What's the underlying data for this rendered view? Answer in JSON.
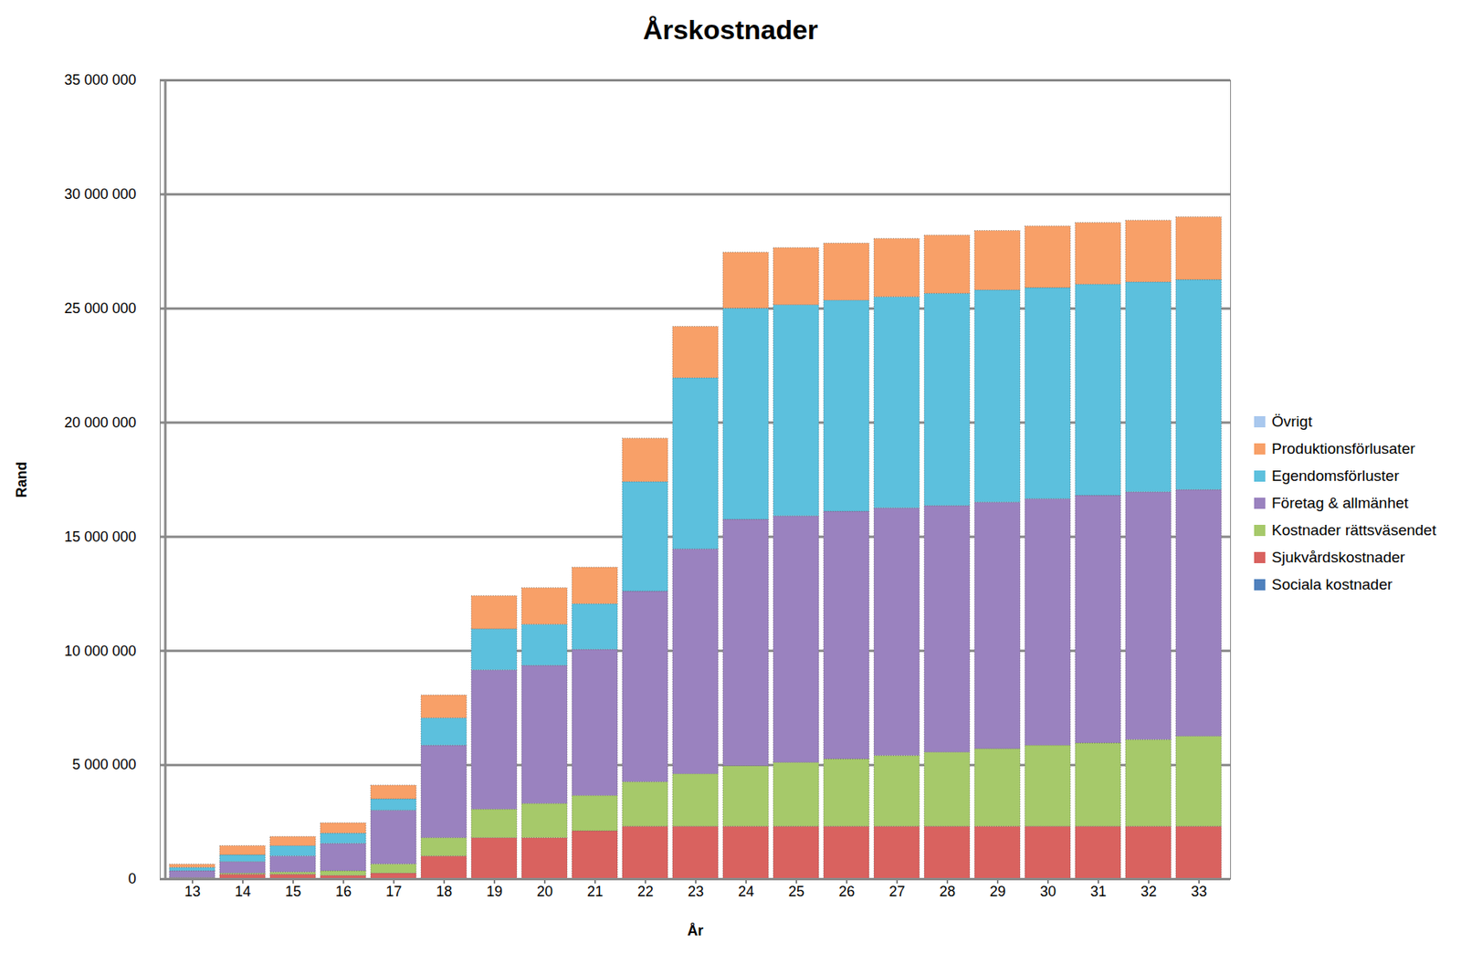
{
  "chart_data": {
    "type": "bar",
    "stacked": true,
    "title": "Årskostnader",
    "x_label": "År",
    "y_label": "Rand",
    "categories": [
      "13",
      "14",
      "15",
      "16",
      "17",
      "18",
      "19",
      "20",
      "21",
      "22",
      "23",
      "24",
      "25",
      "26",
      "27",
      "28",
      "29",
      "30",
      "31",
      "32",
      "33"
    ],
    "series": [
      {
        "name": "Sociala kostnader",
        "color": "#4f81bd",
        "values": [
          0,
          0,
          0,
          0,
          0,
          0,
          0,
          0,
          0,
          0,
          0,
          0,
          0,
          0,
          0,
          0,
          0,
          0,
          0,
          0,
          0
        ]
      },
      {
        "name": "Sjukvårdskostnader",
        "color": "#d9625f",
        "values": [
          30000,
          200000,
          200000,
          150000,
          250000,
          1000000,
          1800000,
          1800000,
          2100000,
          2300000,
          2300000,
          2300000,
          2300000,
          2300000,
          2300000,
          2300000,
          2300000,
          2300000,
          2300000,
          2300000,
          2300000
        ]
      },
      {
        "name": "Kostnader rättsväsendet",
        "color": "#a6c96a",
        "values": [
          20000,
          50000,
          100000,
          200000,
          400000,
          800000,
          1250000,
          1500000,
          1550000,
          1950000,
          2300000,
          2650000,
          2800000,
          2950000,
          3100000,
          3250000,
          3400000,
          3550000,
          3650000,
          3800000,
          3950000
        ]
      },
      {
        "name": "Företag & allmänhet",
        "color": "#9a82bf",
        "values": [
          300000,
          500000,
          700000,
          1200000,
          2350000,
          4050000,
          6100000,
          6050000,
          6400000,
          8350000,
          9850000,
          10800000,
          10800000,
          10850000,
          10850000,
          10800000,
          10800000,
          10800000,
          10850000,
          10850000,
          10800000
        ]
      },
      {
        "name": "Egendomsförluster",
        "color": "#5cc0dd",
        "values": [
          150000,
          300000,
          450000,
          450000,
          500000,
          1200000,
          1800000,
          1800000,
          2000000,
          4800000,
          7500000,
          9250000,
          9250000,
          9250000,
          9250000,
          9300000,
          9300000,
          9250000,
          9250000,
          9200000,
          9200000
        ]
      },
      {
        "name": "Produktionsförlusater",
        "color": "#f8a068",
        "values": [
          140000,
          400000,
          400000,
          450000,
          600000,
          1000000,
          1450000,
          1600000,
          1600000,
          1900000,
          2250000,
          2450000,
          2500000,
          2500000,
          2550000,
          2550000,
          2600000,
          2700000,
          2700000,
          2700000,
          2750000
        ]
      },
      {
        "name": "Övrigt",
        "color": "#a9c8ee",
        "values": [
          0,
          0,
          0,
          0,
          0,
          0,
          0,
          0,
          0,
          0,
          0,
          0,
          0,
          0,
          0,
          0,
          0,
          0,
          0,
          0,
          0
        ]
      }
    ],
    "ylim": [
      0,
      35000000
    ],
    "yticks": [
      0,
      {
        "value": 5000000,
        "label": "5 000 000"
      },
      {
        "value": 10000000,
        "label": "10 000 000"
      },
      {
        "value": 15000000,
        "label": "15 000 000"
      },
      {
        "value": 20000000,
        "label": "20 000 000"
      },
      {
        "value": 25000000,
        "label": "25 000 000"
      },
      {
        "value": 30000000,
        "label": "30 000 000"
      },
      {
        "value": 35000000,
        "label": "35 000 000"
      }
    ],
    "grid": true,
    "legend": "right"
  }
}
